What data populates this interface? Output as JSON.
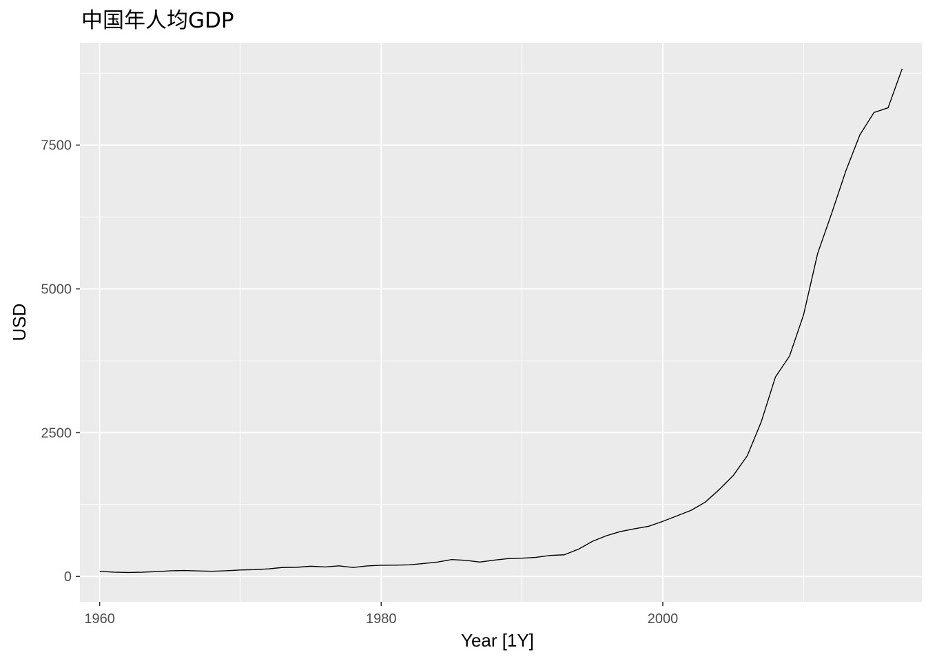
{
  "chart_data": {
    "type": "line",
    "title": "中国年人均GDP",
    "xlabel": "Year [1Y]",
    "ylabel": "USD",
    "xlim": [
      1958.6,
      2018.4
    ],
    "ylim": [
      -440,
      9280
    ],
    "x_ticks": [
      1960,
      1980,
      2000
    ],
    "y_ticks": [
      0,
      2500,
      5000,
      7500
    ],
    "x_tick_labels": [
      "1960",
      "1980",
      "2000"
    ],
    "y_tick_labels": [
      "0",
      "2500",
      "5000",
      "7500"
    ],
    "grid": true,
    "legend": "none",
    "colors": {
      "panel": "#ebebeb",
      "grid_major": "#ffffff",
      "line": "#000000",
      "tick": "#333333"
    },
    "series": [
      {
        "x": [
          1960,
          1961,
          1962,
          1963,
          1964,
          1965,
          1966,
          1967,
          1968,
          1969,
          1970,
          1971,
          1972,
          1973,
          1974,
          1975,
          1976,
          1977,
          1978,
          1979,
          1980,
          1981,
          1982,
          1983,
          1984,
          1985,
          1986,
          1987,
          1988,
          1989,
          1990,
          1991,
          1992,
          1993,
          1994,
          1995,
          1996,
          1997,
          1998,
          1999,
          2000,
          2001,
          2002,
          2003,
          2004,
          2005,
          2006,
          2007,
          2008,
          2009,
          2010,
          2011,
          2012,
          2013,
          2014,
          2015,
          2016,
          2017
        ],
        "y": [
          89,
          76,
          70,
          74,
          85,
          98,
          104,
          97,
          91,
          100,
          113,
          119,
          132,
          157,
          160,
          178,
          165,
          185,
          156,
          183,
          195,
          197,
          203,
          225,
          250,
          294,
          281,
          251,
          283,
          310,
          318,
          333,
          366,
          377,
          473,
          610,
          709,
          782,
          829,
          873,
          959,
          1053,
          1149,
          1289,
          1509,
          1753,
          2099,
          2694,
          3468,
          3832,
          4550,
          5618,
          6317,
          7051,
          7679,
          8067,
          8148,
          8827
        ]
      }
    ]
  }
}
